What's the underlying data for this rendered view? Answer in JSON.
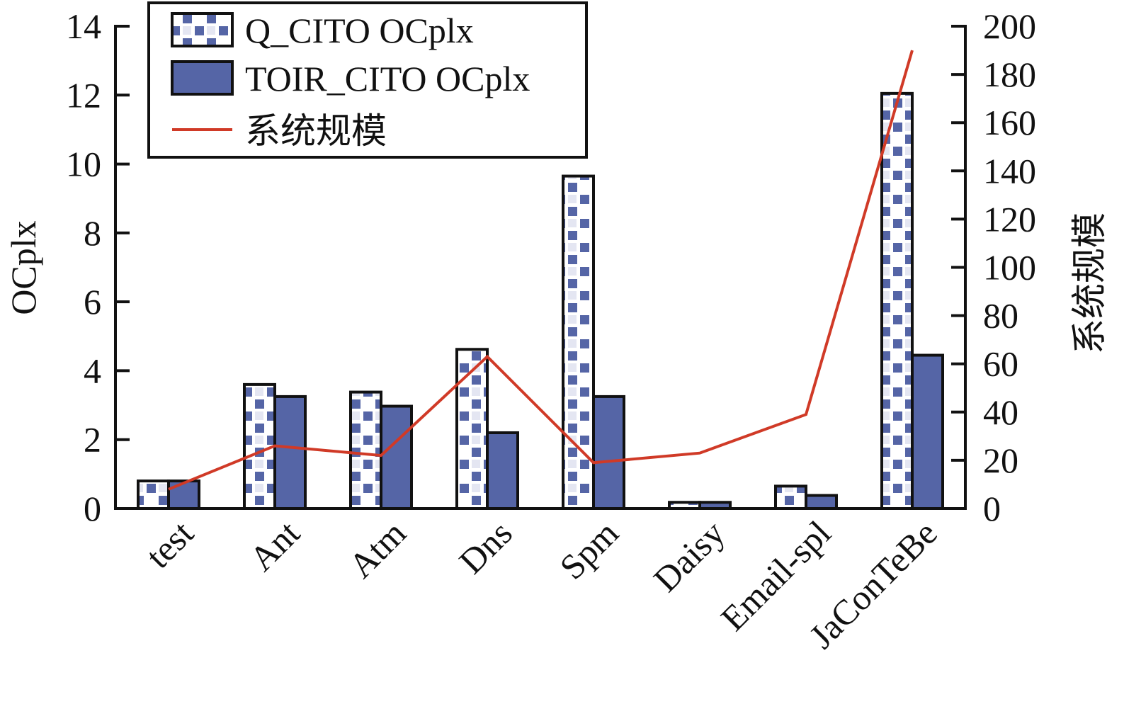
{
  "chart_data": {
    "type": "bar",
    "categories": [
      "test",
      "Ant",
      "Atm",
      "Dns",
      "Spm",
      "Daisy",
      "Email-spl",
      "JaConTeBe"
    ],
    "series": [
      {
        "name": "Q_CITO OCplx",
        "values": [
          0.8,
          3.6,
          3.38,
          4.62,
          9.65,
          0.18,
          0.65,
          12.05
        ],
        "pattern": "checker",
        "color": "#5565a6"
      },
      {
        "name": "TOIR_CITO OCplx",
        "values": [
          0.8,
          3.25,
          2.97,
          2.2,
          3.25,
          0.18,
          0.38,
          4.45
        ],
        "pattern": "solid",
        "color": "#5565a6"
      }
    ],
    "line_series": {
      "name": "系统规模",
      "values": [
        8,
        26,
        22,
        63,
        19,
        23,
        39,
        190
      ],
      "color": "#d03a27",
      "axis": "right"
    },
    "ylabel": "OCplx",
    "y2label": "系统规模",
    "ylim": [
      0,
      14
    ],
    "y2lim": [
      0,
      200
    ],
    "yticks": [
      "0",
      "2",
      "4",
      "6",
      "8",
      "10",
      "12",
      "14"
    ],
    "y2ticks": [
      "0",
      "20",
      "40",
      "60",
      "80",
      "100",
      "120",
      "140",
      "160",
      "180",
      "200"
    ],
    "legend": "top-left",
    "grid": false
  }
}
